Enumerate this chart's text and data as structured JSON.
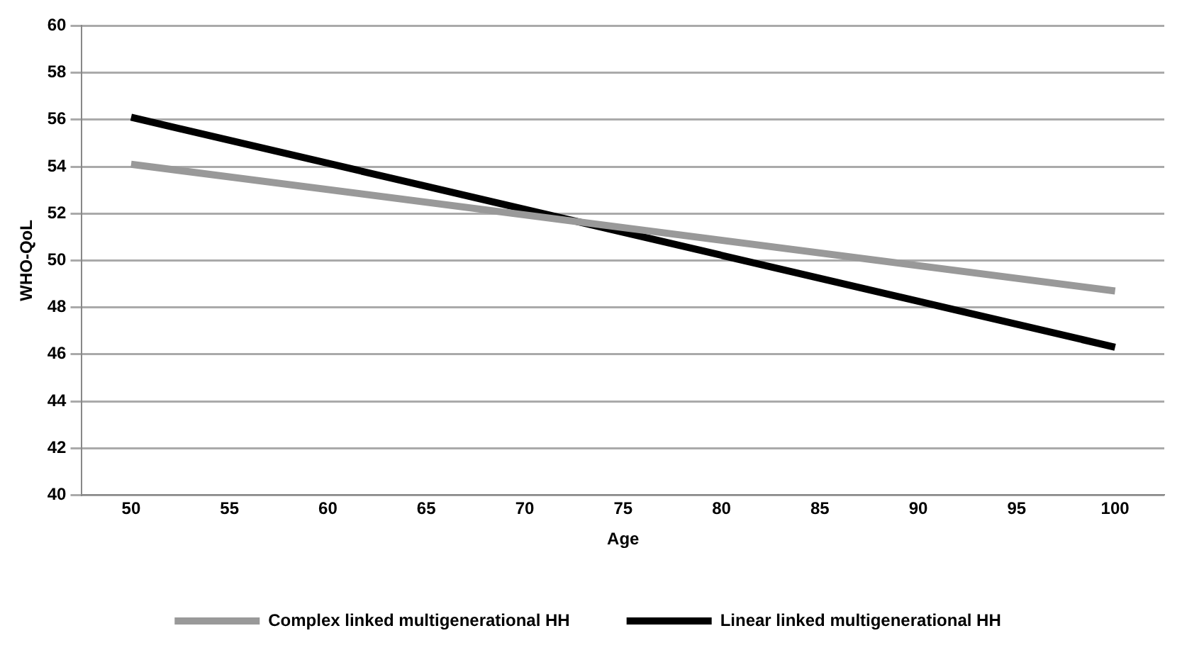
{
  "chart_data": {
    "type": "line",
    "xlabel": "Age",
    "ylabel": "WHO-QoL",
    "x": [
      50,
      100
    ],
    "series": [
      {
        "name": "Complex linked multigenerational HH",
        "color": "#999999",
        "values": [
          54.1,
          48.7
        ]
      },
      {
        "name": "Linear linked multigenerational HH",
        "color": "#000000",
        "values": [
          56.1,
          46.3
        ]
      }
    ],
    "xlim": [
      47.5,
      102.5
    ],
    "xticks": [
      50,
      55,
      60,
      65,
      70,
      75,
      80,
      85,
      90,
      95,
      100
    ],
    "ylim": [
      40,
      60
    ],
    "yticks": [
      40,
      42,
      44,
      46,
      48,
      50,
      52,
      54,
      56,
      58,
      60
    ],
    "grid": "y",
    "legend": "bottom",
    "marker": "none",
    "line_style": "solid"
  }
}
